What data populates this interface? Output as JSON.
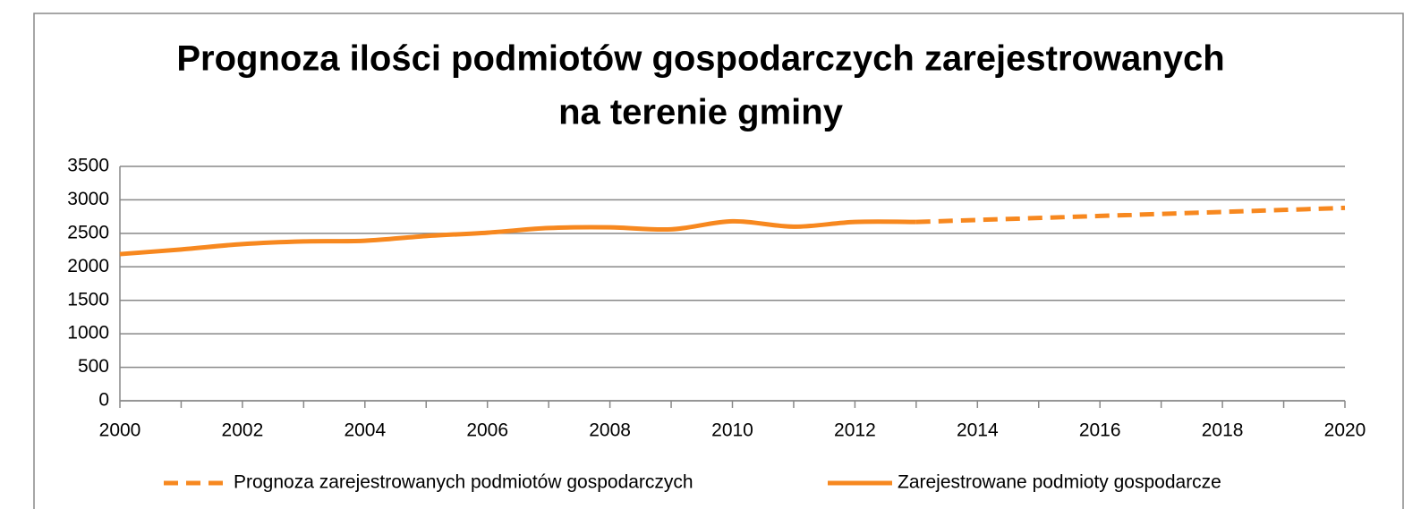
{
  "chart_data": {
    "type": "line",
    "title": [
      "Prognoza ilości podmiotów gospodarczych zarejestrowanych",
      "na terenie gminy"
    ],
    "series": [
      {
        "name": "Prognoza zarejestrowanych podmiotów gospodarczych",
        "color": "#f7881f",
        "dashed": true,
        "x": [
          2013,
          2014,
          2015,
          2016,
          2017,
          2018,
          2019,
          2020
        ],
        "values": [
          2670,
          2700,
          2730,
          2760,
          2790,
          2820,
          2850,
          2880
        ]
      },
      {
        "name": "Zarejestrowane podmioty gospodarcze",
        "color": "#f7881f",
        "dashed": false,
        "x": [
          2000,
          2001,
          2002,
          2003,
          2004,
          2005,
          2006,
          2007,
          2008,
          2009,
          2010,
          2011,
          2012,
          2013
        ],
        "values": [
          2190,
          2260,
          2340,
          2380,
          2390,
          2460,
          2510,
          2580,
          2590,
          2560,
          2680,
          2600,
          2670,
          2670
        ]
      }
    ],
    "xlim": [
      2000,
      2020
    ],
    "xticks": [
      2000,
      2002,
      2004,
      2006,
      2008,
      2010,
      2012,
      2014,
      2016,
      2018,
      2020
    ],
    "ylim": [
      0,
      3500
    ],
    "yticks": [
      0,
      500,
      1000,
      1500,
      2000,
      2500,
      3000,
      3500
    ],
    "grid": true,
    "legend": "bottom"
  }
}
